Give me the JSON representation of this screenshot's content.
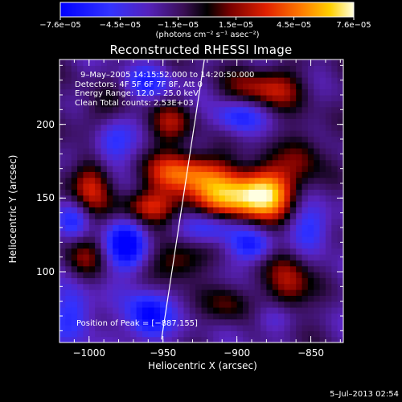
{
  "chart_data": {
    "type": "heatmap",
    "title": "Reconstructed RHESSI Image",
    "xlabel": "Heliocentric X (arcsec)",
    "ylabel": "Heliocentric Y (arcsec)",
    "xlim": [
      -1020,
      -828
    ],
    "ylim": [
      52,
      244
    ],
    "xticks": [
      -1000,
      -950,
      -900,
      -850
    ],
    "yticks": [
      100,
      150,
      200
    ],
    "xtick_labels": [
      "−1000",
      "−950",
      "−900",
      "−850"
    ],
    "ytick_labels": [
      "100",
      "150",
      "200"
    ],
    "colorbar": {
      "min": -7.6e-05,
      "max": 7.6e-05,
      "tick_values": [
        -7.6e-05,
        -4.5e-05,
        -1.5e-05,
        1.5e-05,
        4.5e-05,
        7.6e-05
      ],
      "tick_labels": [
        "−7.6e−05",
        "−4.5e−05",
        "−1.5e−05",
        "1.5e−05",
        "4.5e−05",
        "7.6e−05"
      ],
      "unit": "(photons cm⁻² s⁻¹ asec⁻²)"
    },
    "annotations": {
      "time": "9–May–2005 14:15:52.000  to 14:20:50.000",
      "detectors": "Detectors: 4F 5F 6F 7F 8F, Att 0",
      "energy": "Energy Range: 12.0 – 25.0 keV",
      "algorithm": "Clean     Total counts: 2.53E+03",
      "peak": "Position of Peak = [−887,155]"
    },
    "limb_line": [
      [
        -951,
        54
      ],
      [
        -922,
        244
      ]
    ],
    "peak_position": [
      -887,
      155
    ],
    "image_grid": {
      "nx": 48,
      "ny": 48,
      "components": [
        {
          "x": -935,
          "y": 168,
          "w": 0.6,
          "sx": 20,
          "sy": 10
        },
        {
          "x": -905,
          "y": 150,
          "w": 0.7,
          "sx": 22,
          "sy": 12
        },
        {
          "x": -880,
          "y": 155,
          "w": 0.65,
          "sx": 14,
          "sy": 12
        },
        {
          "x": -960,
          "y": 145,
          "w": 0.45,
          "sx": 14,
          "sy": 8
        },
        {
          "x": -1000,
          "y": 160,
          "w": 0.5,
          "sx": 10,
          "sy": 14
        },
        {
          "x": -990,
          "y": 205,
          "w": 0.35,
          "sx": 12,
          "sy": 12
        },
        {
          "x": -945,
          "y": 200,
          "w": 0.35,
          "sx": 12,
          "sy": 10
        },
        {
          "x": -880,
          "y": 225,
          "w": 0.45,
          "sx": 18,
          "sy": 10
        },
        {
          "x": -855,
          "y": 180,
          "w": 0.3,
          "sx": 10,
          "sy": 14
        },
        {
          "x": -940,
          "y": 108,
          "w": 0.4,
          "sx": 12,
          "sy": 10
        },
        {
          "x": -865,
          "y": 92,
          "w": 0.45,
          "sx": 10,
          "sy": 18
        },
        {
          "x": -905,
          "y": 80,
          "w": 0.3,
          "sx": 10,
          "sy": 10
        },
        {
          "x": -1005,
          "y": 110,
          "w": 0.3,
          "sx": 10,
          "sy": 12
        },
        {
          "x": -985,
          "y": 190,
          "w": -0.55,
          "sx": 10,
          "sy": 14
        },
        {
          "x": -975,
          "y": 118,
          "w": -0.6,
          "sx": 10,
          "sy": 12
        },
        {
          "x": -960,
          "y": 70,
          "w": -0.6,
          "sx": 10,
          "sy": 12
        },
        {
          "x": -920,
          "y": 130,
          "w": -0.45,
          "sx": 14,
          "sy": 8
        },
        {
          "x": -890,
          "y": 118,
          "w": -0.45,
          "sx": 10,
          "sy": 8
        },
        {
          "x": -850,
          "y": 130,
          "w": -0.4,
          "sx": 10,
          "sy": 12
        },
        {
          "x": -1010,
          "y": 72,
          "w": -0.4,
          "sx": 10,
          "sy": 14
        },
        {
          "x": -900,
          "y": 205,
          "w": -0.4,
          "sx": 12,
          "sy": 8
        },
        {
          "x": -960,
          "y": 228,
          "w": -0.35,
          "sx": 12,
          "sy": 8
        },
        {
          "x": -1010,
          "y": 135,
          "w": -0.35,
          "sx": 8,
          "sy": 10
        },
        {
          "x": -875,
          "y": 68,
          "w": -0.3,
          "sx": 10,
          "sy": 8
        }
      ]
    }
  },
  "timestamp": "5–Jul–2013 02:54"
}
